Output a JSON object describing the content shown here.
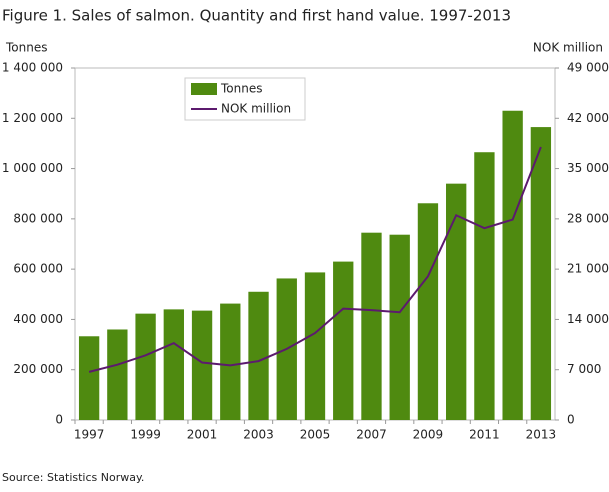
{
  "chart_data": {
    "type": "bar-line",
    "title": "Figure 1. Sales of salmon. Quantity and first hand value. 1997-2013",
    "y_label": "Tonnes",
    "y2_label": "NOK million",
    "source": "Source: Statistics Norway.",
    "categories": [
      "1997",
      null,
      "1999",
      null,
      "2001",
      null,
      "2003",
      null,
      "2005",
      null,
      "2007",
      null,
      "2009",
      null,
      "2011",
      null,
      "2013"
    ],
    "series": [
      {
        "name": "Tonnes",
        "type": "bar",
        "color": "#4f8a10",
        "values": [
          333000,
          360000,
          423000,
          440000,
          435000,
          463000,
          510000,
          563000,
          587000,
          630000,
          745000,
          737000,
          862000,
          940000,
          1065000,
          1230000,
          1165000
        ]
      },
      {
        "name": "NOK million",
        "type": "line",
        "axis": "y2",
        "color": "#5c1a6e",
        "values": [
          6700,
          7700,
          9000,
          10700,
          8000,
          7600,
          8200,
          9900,
          12100,
          15500,
          15300,
          15000,
          20000,
          28500,
          26700,
          27900,
          38000
        ]
      }
    ],
    "ylim": [
      0,
      1400000
    ],
    "yticks": [
      0,
      {
        "value": 200000,
        "label": "200 000"
      },
      {
        "value": 400000,
        "label": "400 000"
      },
      {
        "value": 600000,
        "label": "600 000"
      },
      {
        "value": 800000,
        "label": "800 000"
      },
      {
        "value": 1000000,
        "label": "1 000 000"
      },
      {
        "value": 1200000,
        "label": "1 200 000"
      },
      {
        "value": 1400000,
        "label": "1 400 000"
      }
    ],
    "y2lim": [
      0,
      49000
    ],
    "y2ticks": [
      0,
      {
        "value": 7000,
        "label": "7 000"
      },
      {
        "value": 14000,
        "label": "14 000"
      },
      {
        "value": 21000,
        "label": "21 000"
      },
      {
        "value": 28000,
        "label": "28 000"
      },
      {
        "value": 35000,
        "label": "35 000"
      },
      {
        "value": 42000,
        "label": "42 000"
      },
      {
        "value": 49000,
        "label": "49 000"
      }
    ],
    "grid": false,
    "legend": "upper left"
  }
}
